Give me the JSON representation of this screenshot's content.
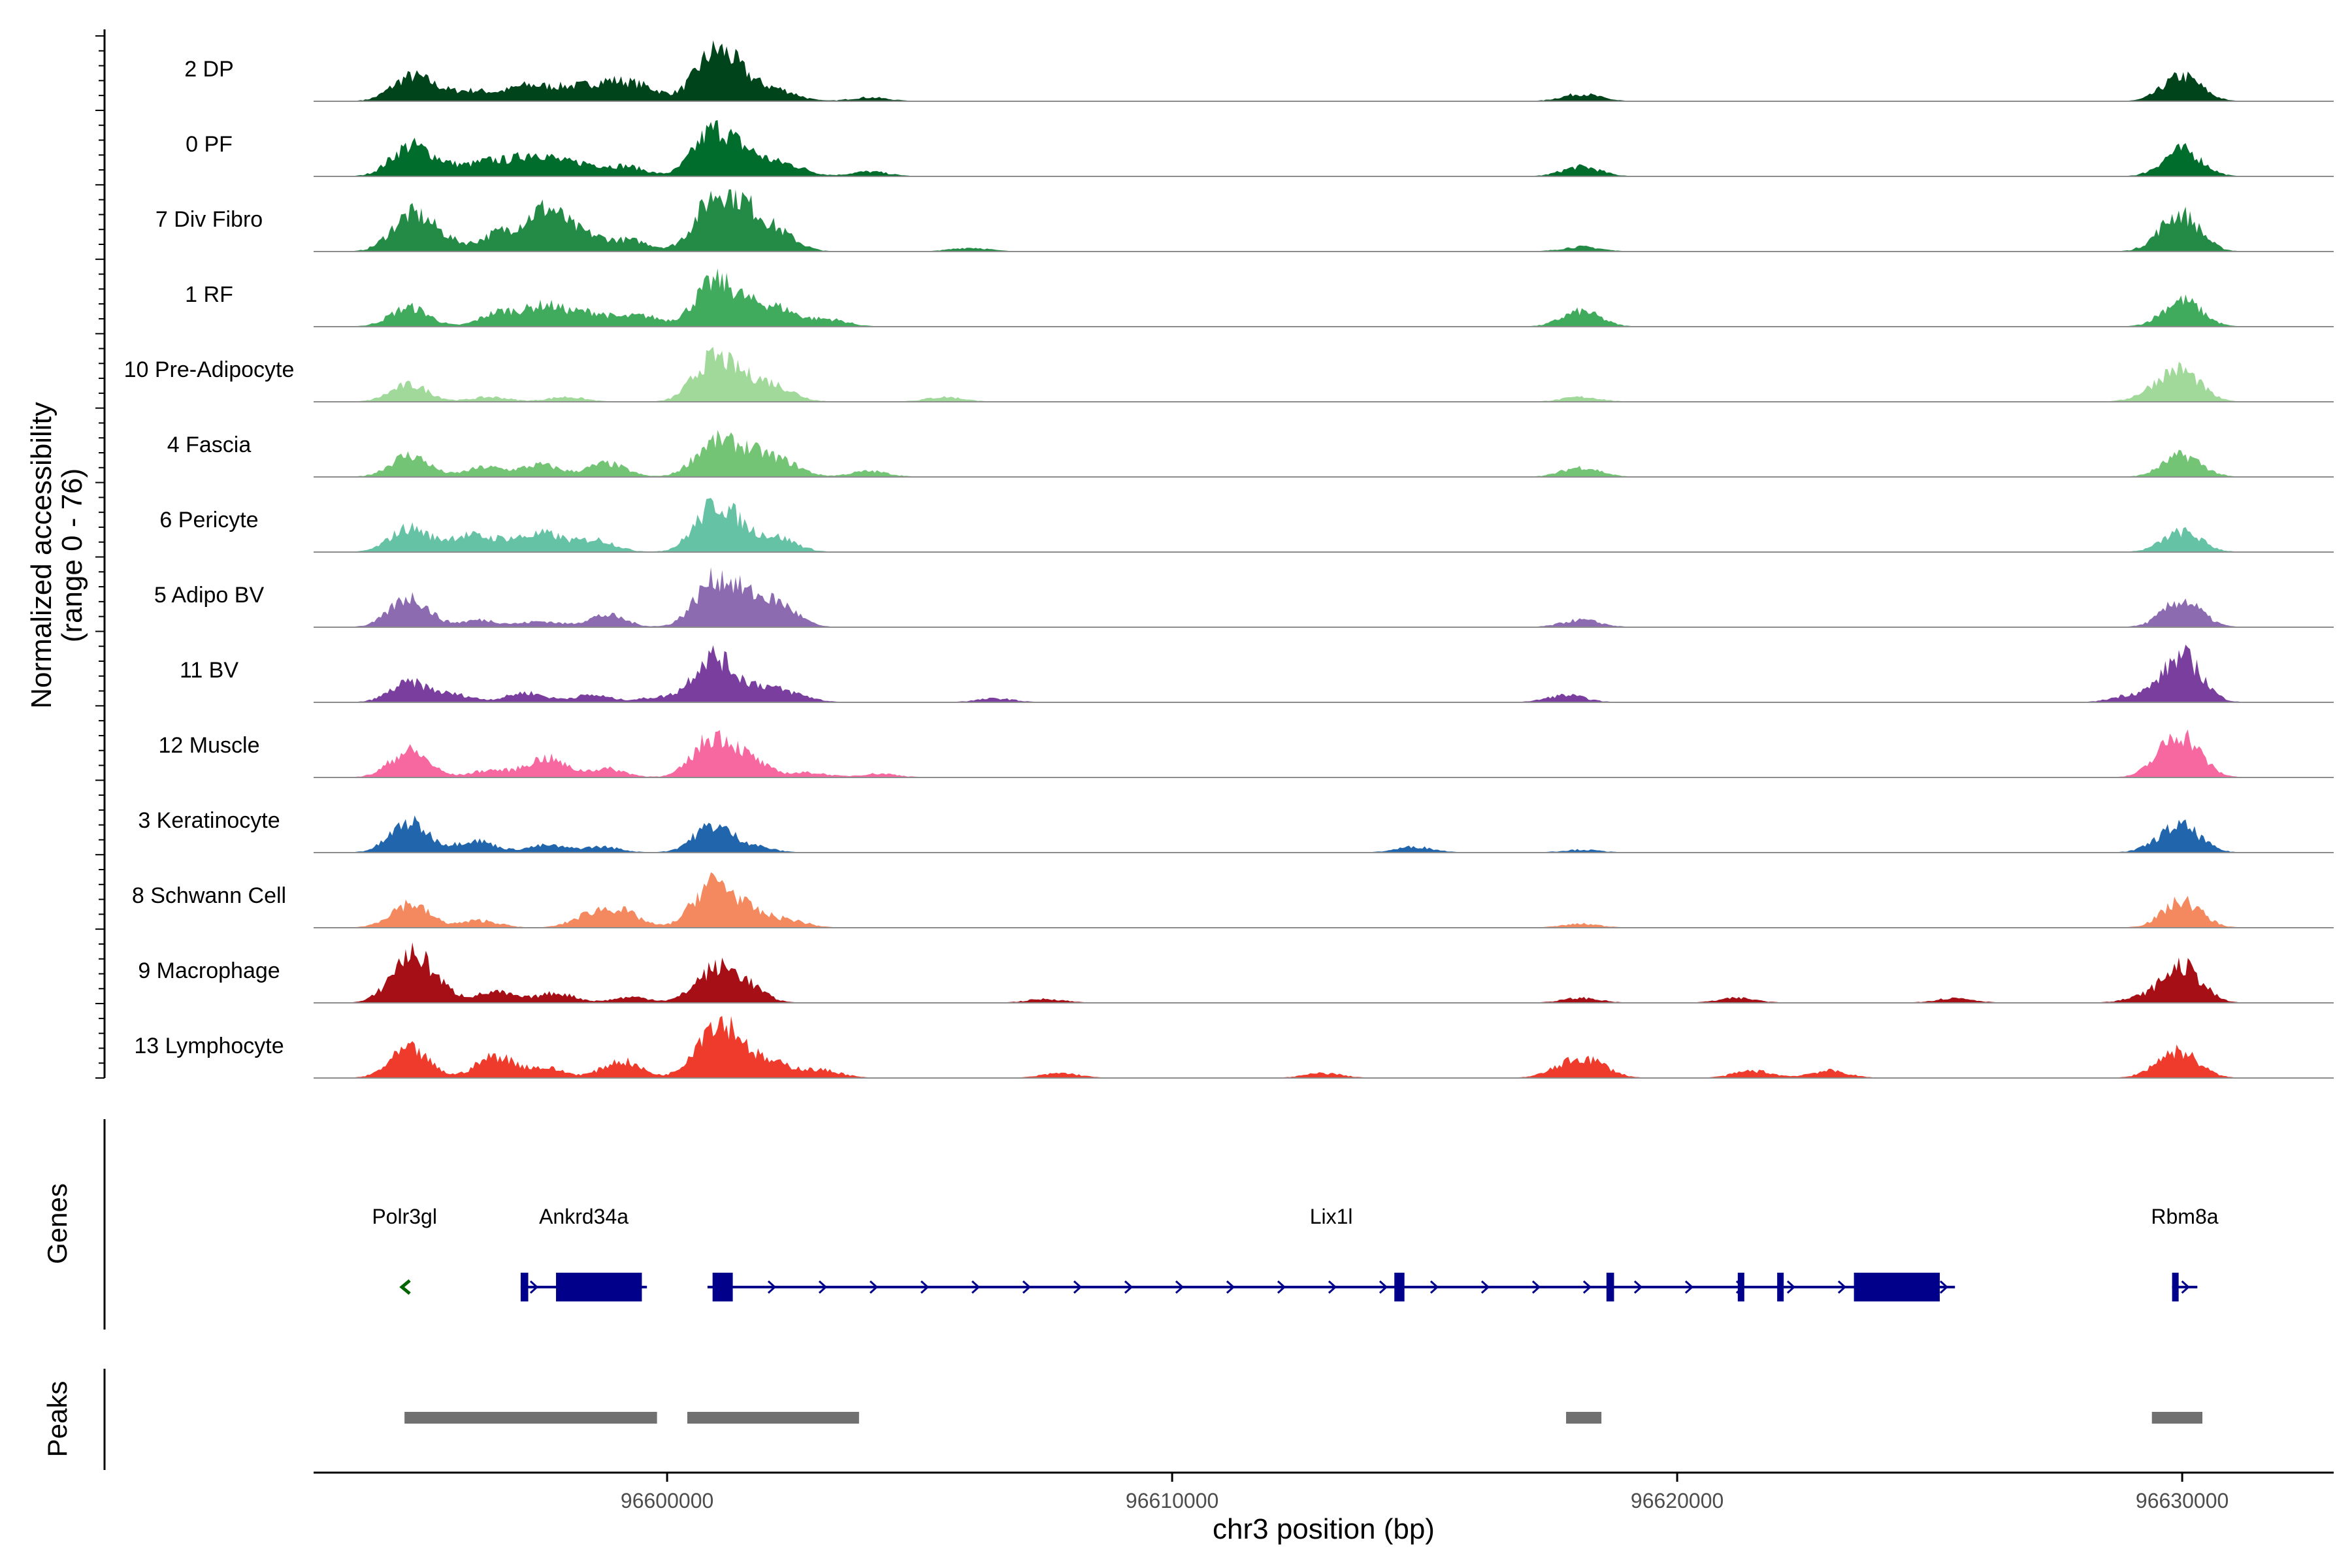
{
  "chart_data": {
    "type": "area",
    "title": "",
    "xlabel": "chr3 position (bp)",
    "ylabel": "Normalized accessibility",
    "ylabel_range": "(range 0 - 76)",
    "ylim": [
      0,
      76
    ],
    "xlim": [
      96593000,
      96633000
    ],
    "x_ticks": [
      96600000,
      96610000,
      96620000,
      96630000
    ],
    "x_tick_labels": [
      "96600000",
      "96610000",
      "96620000",
      "96630000"
    ],
    "tracks": [
      {
        "name": "2 DP",
        "color": "#00441b",
        "peaks": [
          [
            96594900,
            0.45
          ],
          [
            96595400,
            0.15
          ],
          [
            96596200,
            0.2
          ],
          [
            96597200,
            0.3
          ],
          [
            96598000,
            0.25
          ],
          [
            96598800,
            0.35
          ],
          [
            96599500,
            0.28
          ],
          [
            96600900,
            0.85
          ],
          [
            96601400,
            0.42
          ],
          [
            96602200,
            0.22
          ],
          [
            96604000,
            0.08
          ],
          [
            96618100,
            0.15
          ],
          [
            96630000,
            0.52
          ]
        ]
      },
      {
        "name": "0 PF",
        "color": "#006d2c",
        "peaks": [
          [
            96594900,
            0.6
          ],
          [
            96595600,
            0.2
          ],
          [
            96596500,
            0.3
          ],
          [
            96597400,
            0.45
          ],
          [
            96598300,
            0.25
          ],
          [
            96599200,
            0.2
          ],
          [
            96600900,
            0.9
          ],
          [
            96601600,
            0.4
          ],
          [
            96602400,
            0.22
          ],
          [
            96604000,
            0.1
          ],
          [
            96618100,
            0.2
          ],
          [
            96630000,
            0.55
          ]
        ]
      },
      {
        "name": "7 Div Fibro",
        "color": "#238b45",
        "peaks": [
          [
            96594900,
            0.7
          ],
          [
            96595500,
            0.25
          ],
          [
            96596700,
            0.38
          ],
          [
            96597600,
            0.85
          ],
          [
            96598400,
            0.3
          ],
          [
            96599300,
            0.22
          ],
          [
            96600900,
            0.95
          ],
          [
            96601500,
            0.75
          ],
          [
            96602200,
            0.35
          ],
          [
            96606000,
            0.08
          ],
          [
            96618100,
            0.1
          ],
          [
            96629800,
            0.2
          ],
          [
            96630000,
            0.6
          ]
        ]
      },
      {
        "name": "1 RF",
        "color": "#41ab5d",
        "peaks": [
          [
            96594900,
            0.4
          ],
          [
            96596700,
            0.3
          ],
          [
            96597600,
            0.42
          ],
          [
            96598500,
            0.28
          ],
          [
            96599500,
            0.22
          ],
          [
            96600900,
            0.82
          ],
          [
            96601500,
            0.35
          ],
          [
            96602200,
            0.35
          ],
          [
            96603200,
            0.15
          ],
          [
            96618100,
            0.32
          ],
          [
            96630000,
            0.55
          ]
        ]
      },
      {
        "name": "10 Pre-Adipocyte",
        "color": "#a1d99b",
        "peaks": [
          [
            96594900,
            0.35
          ],
          [
            96596500,
            0.1
          ],
          [
            96598000,
            0.1
          ],
          [
            96600900,
            0.85
          ],
          [
            96601600,
            0.35
          ],
          [
            96602200,
            0.25
          ],
          [
            96605500,
            0.1
          ],
          [
            96618100,
            0.1
          ],
          [
            96629500,
            0.2
          ],
          [
            96630000,
            0.58
          ]
        ]
      },
      {
        "name": "4 Fascia",
        "color": "#74c476",
        "peaks": [
          [
            96594900,
            0.45
          ],
          [
            96596400,
            0.2
          ],
          [
            96597500,
            0.25
          ],
          [
            96598800,
            0.28
          ],
          [
            96600900,
            0.65
          ],
          [
            96601600,
            0.45
          ],
          [
            96602300,
            0.28
          ],
          [
            96604000,
            0.12
          ],
          [
            96618100,
            0.2
          ],
          [
            96630000,
            0.45
          ]
        ]
      },
      {
        "name": "6 Pericyte",
        "color": "#66c2a4",
        "peaks": [
          [
            96594900,
            0.5
          ],
          [
            96596000,
            0.32
          ],
          [
            96596800,
            0.22
          ],
          [
            96597600,
            0.35
          ],
          [
            96598600,
            0.25
          ],
          [
            96600900,
            0.82
          ],
          [
            96601400,
            0.35
          ],
          [
            96602200,
            0.28
          ],
          [
            96630000,
            0.42
          ]
        ]
      },
      {
        "name": "5 Adipo BV",
        "color": "#8c6bb1",
        "peaks": [
          [
            96594900,
            0.62
          ],
          [
            96596300,
            0.15
          ],
          [
            96597500,
            0.12
          ],
          [
            96598800,
            0.25
          ],
          [
            96600900,
            0.85
          ],
          [
            96601500,
            0.48
          ],
          [
            96602200,
            0.45
          ],
          [
            96618100,
            0.15
          ],
          [
            96630000,
            0.55
          ]
        ]
      },
      {
        "name": "11 BV",
        "color": "#7a3f9e",
        "peaks": [
          [
            96594900,
            0.4
          ],
          [
            96595800,
            0.15
          ],
          [
            96597200,
            0.2
          ],
          [
            96598500,
            0.15
          ],
          [
            96599800,
            0.1
          ],
          [
            96600900,
            0.95
          ],
          [
            96601800,
            0.3
          ],
          [
            96602500,
            0.15
          ],
          [
            96606500,
            0.08
          ],
          [
            96617800,
            0.15
          ],
          [
            96629000,
            0.15
          ],
          [
            96630000,
            0.95
          ]
        ]
      },
      {
        "name": "12 Muscle",
        "color": "#f768a1",
        "peaks": [
          [
            96594900,
            0.55
          ],
          [
            96596500,
            0.15
          ],
          [
            96597600,
            0.4
          ],
          [
            96598800,
            0.18
          ],
          [
            96600900,
            0.8
          ],
          [
            96601600,
            0.35
          ],
          [
            96602800,
            0.1
          ],
          [
            96604200,
            0.08
          ],
          [
            96629700,
            0.2
          ],
          [
            96630000,
            0.75
          ]
        ]
      },
      {
        "name": "3 Keratinocyte",
        "color": "#2166ac",
        "peaks": [
          [
            96594900,
            0.62
          ],
          [
            96596200,
            0.25
          ],
          [
            96597600,
            0.15
          ],
          [
            96598700,
            0.12
          ],
          [
            96600900,
            0.55
          ],
          [
            96601700,
            0.12
          ],
          [
            96614800,
            0.12
          ],
          [
            96618100,
            0.06
          ],
          [
            96629600,
            0.1
          ],
          [
            96630000,
            0.5
          ]
        ]
      },
      {
        "name": "8 Schwann Cell",
        "color": "#f4895f",
        "peaks": [
          [
            96594900,
            0.5
          ],
          [
            96596300,
            0.15
          ],
          [
            96598500,
            0.25
          ],
          [
            96599100,
            0.3
          ],
          [
            96600900,
            0.9
          ],
          [
            96601600,
            0.3
          ],
          [
            96602400,
            0.15
          ],
          [
            96618100,
            0.08
          ],
          [
            96630000,
            0.55
          ]
        ]
      },
      {
        "name": "9 Macrophage",
        "color": "#a50f15",
        "peaks": [
          [
            96594900,
            0.9
          ],
          [
            96595400,
            0.25
          ],
          [
            96596600,
            0.22
          ],
          [
            96597800,
            0.2
          ],
          [
            96599300,
            0.12
          ],
          [
            96600900,
            0.6
          ],
          [
            96601500,
            0.38
          ],
          [
            96607500,
            0.08
          ],
          [
            96618100,
            0.1
          ],
          [
            96621200,
            0.1
          ],
          [
            96625500,
            0.1
          ],
          [
            96629200,
            0.1
          ],
          [
            96630000,
            0.75
          ]
        ]
      },
      {
        "name": "13 Lymphocyte",
        "color": "#ef3b2c",
        "peaks": [
          [
            96594900,
            0.6
          ],
          [
            96596600,
            0.45
          ],
          [
            96597600,
            0.2
          ],
          [
            96599100,
            0.35
          ],
          [
            96600900,
            0.95
          ],
          [
            96601400,
            0.5
          ],
          [
            96602200,
            0.25
          ],
          [
            96603100,
            0.15
          ],
          [
            96607800,
            0.1
          ],
          [
            96613000,
            0.1
          ],
          [
            96617800,
            0.2
          ],
          [
            96618300,
            0.3
          ],
          [
            96621500,
            0.15
          ],
          [
            96623000,
            0.15
          ],
          [
            96629700,
            0.2
          ],
          [
            96630000,
            0.4
          ]
        ]
      }
    ],
    "genes": [
      {
        "name": "Polr3gl",
        "strand": "-",
        "start": 96594800,
        "end": 96595000,
        "color": "#006400",
        "exons": []
      },
      {
        "name": "Ankrd34a",
        "strand": "+",
        "start": 96597100,
        "end": 96599600,
        "color": "#00008b",
        "exons": [
          [
            96597100,
            96597250
          ],
          [
            96597800,
            96599500
          ]
        ]
      },
      {
        "name": "Lix1l",
        "strand": "+",
        "start": 96600800,
        "end": 96625500,
        "color": "#00008b",
        "exons": [
          [
            96600900,
            96601300
          ],
          [
            96614400,
            96614600
          ],
          [
            96618600,
            96618750
          ],
          [
            96621200,
            96621280
          ],
          [
            96621980,
            96622020
          ],
          [
            96623500,
            96625200
          ]
        ]
      },
      {
        "name": "Rbm8a",
        "strand": "+",
        "start": 96629800,
        "end": 96630300,
        "color": "#00008b",
        "exons": [
          [
            96629800,
            96629900
          ]
        ]
      }
    ],
    "peaks_track": {
      "title": "Peaks",
      "color": "#707070",
      "regions": [
        [
          96594800,
          96599800
        ],
        [
          96600400,
          96603800
        ],
        [
          96617800,
          96618500
        ],
        [
          96629400,
          96630400
        ]
      ]
    },
    "genes_title": "Genes"
  }
}
